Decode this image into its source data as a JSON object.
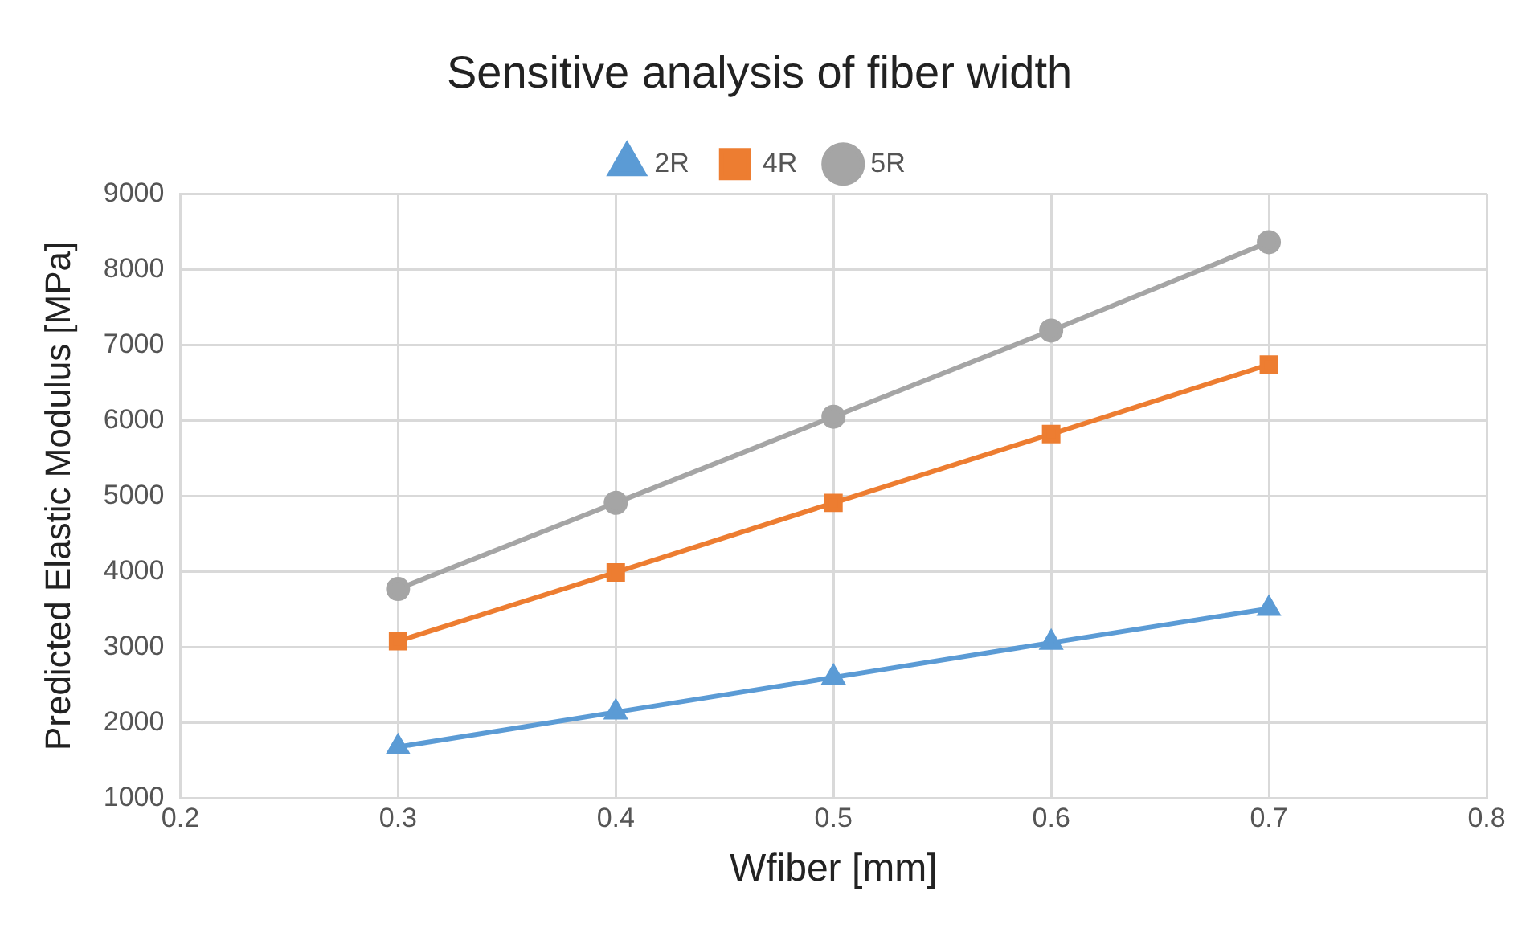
{
  "chart_data": {
    "type": "line",
    "title": "Sensitive analysis of fiber width",
    "xlabel": "Wfiber [mm]",
    "ylabel": "Predicted Elastic Modulus [MPa]",
    "x": [
      0.3,
      0.4,
      0.5,
      0.6,
      0.7
    ],
    "series": [
      {
        "name": "2R",
        "color": "#5b9bd5",
        "marker": "triangle",
        "values": [
          1680,
          2140,
          2600,
          3060,
          3510
        ]
      },
      {
        "name": "4R",
        "color": "#ed7d31",
        "marker": "square",
        "values": [
          3080,
          3990,
          4910,
          5820,
          6740
        ]
      },
      {
        "name": "5R",
        "color": "#a5a5a5",
        "marker": "circle",
        "values": [
          3770,
          4910,
          6050,
          7190,
          8360
        ]
      }
    ],
    "xlim": [
      0.2,
      0.8
    ],
    "xticks": [
      0.2,
      0.3,
      0.4,
      0.5,
      0.6,
      0.7,
      0.8
    ],
    "ylim": [
      1000,
      9000
    ],
    "yticks": [
      1000,
      2000,
      3000,
      4000,
      5000,
      6000,
      7000,
      8000,
      9000
    ],
    "grid": true,
    "legend": "top",
    "line_style": "solid"
  }
}
